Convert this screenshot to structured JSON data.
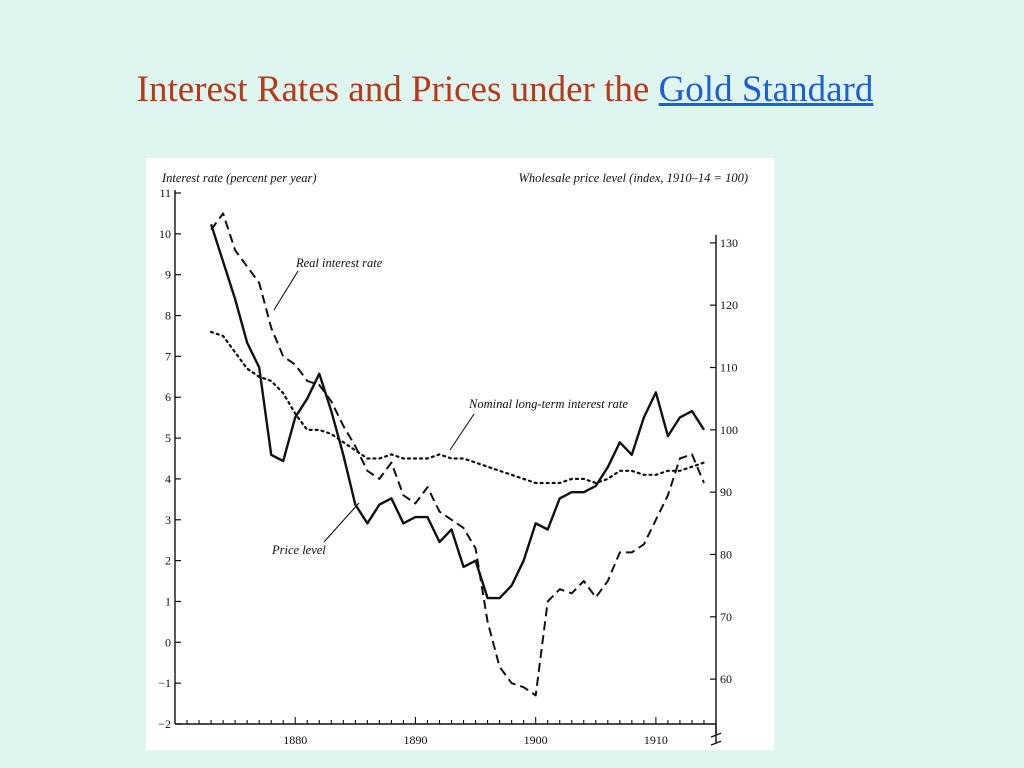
{
  "slide": {
    "title_prefix": "Interest Rates and Prices under the ",
    "title_link": "Gold Standard",
    "title_color": "#b5391a",
    "link_color": "#1f5fd6",
    "background": "#dff5ef"
  },
  "chart_data": {
    "type": "line",
    "left_axis_title": "Interest rate (percent per year)",
    "right_axis_title": "Wholesale price level (index, 1910–14 = 100)",
    "x_ticks": [
      1880,
      1890,
      1900,
      1910
    ],
    "xlim": [
      1870,
      1915
    ],
    "left_ylim": [
      -2,
      11
    ],
    "left_ticks": [
      -2,
      -1,
      0,
      1,
      2,
      3,
      4,
      5,
      6,
      7,
      8,
      9,
      10,
      11
    ],
    "right_ylim": [
      52.8,
      138
    ],
    "right_ticks": [
      60,
      70,
      80,
      90,
      100,
      110,
      120,
      130
    ],
    "right_axis_break": true,
    "grid": false,
    "series": [
      {
        "name": "Real interest rate",
        "axis": "left",
        "style": "dashed",
        "x": [
          1873,
          1874,
          1875,
          1876,
          1877,
          1878,
          1879,
          1880,
          1881,
          1882,
          1883,
          1884,
          1885,
          1886,
          1887,
          1888,
          1889,
          1890,
          1891,
          1892,
          1893,
          1894,
          1895,
          1896,
          1897,
          1898,
          1899,
          1900,
          1901,
          1902,
          1903,
          1904,
          1905,
          1906,
          1907,
          1908,
          1909,
          1910,
          1911,
          1912,
          1913,
          1914
        ],
        "values": [
          10.1,
          10.5,
          9.6,
          9.2,
          8.8,
          7.7,
          7.0,
          6.8,
          6.4,
          6.3,
          5.9,
          5.3,
          4.8,
          4.2,
          4.0,
          4.4,
          3.6,
          3.4,
          3.8,
          3.2,
          3.0,
          2.8,
          2.3,
          0.5,
          -0.6,
          -1.0,
          -1.1,
          -1.3,
          1.0,
          1.3,
          1.2,
          1.5,
          1.1,
          1.5,
          2.2,
          2.2,
          2.4,
          3.0,
          3.6,
          4.5,
          4.6,
          3.9
        ]
      },
      {
        "name": "Nominal long-term interest rate",
        "axis": "left",
        "style": "dotted",
        "x": [
          1873,
          1874,
          1875,
          1876,
          1877,
          1878,
          1879,
          1880,
          1881,
          1882,
          1883,
          1884,
          1885,
          1886,
          1887,
          1888,
          1889,
          1890,
          1891,
          1892,
          1893,
          1894,
          1895,
          1896,
          1897,
          1898,
          1899,
          1900,
          1901,
          1902,
          1903,
          1904,
          1905,
          1906,
          1907,
          1908,
          1909,
          1910,
          1911,
          1912,
          1913,
          1914
        ],
        "values": [
          7.6,
          7.5,
          7.1,
          6.7,
          6.5,
          6.4,
          6.1,
          5.6,
          5.2,
          5.2,
          5.1,
          4.9,
          4.7,
          4.5,
          4.5,
          4.6,
          4.5,
          4.5,
          4.5,
          4.6,
          4.5,
          4.5,
          4.4,
          4.3,
          4.2,
          4.1,
          4.0,
          3.9,
          3.9,
          3.9,
          4.0,
          4.0,
          3.9,
          4.0,
          4.2,
          4.2,
          4.1,
          4.1,
          4.2,
          4.2,
          4.3,
          4.4
        ]
      },
      {
        "name": "Price level",
        "axis": "right",
        "style": "solid",
        "x": [
          1873,
          1874,
          1875,
          1876,
          1877,
          1878,
          1879,
          1880,
          1881,
          1882,
          1883,
          1884,
          1885,
          1886,
          1887,
          1888,
          1889,
          1890,
          1891,
          1892,
          1893,
          1894,
          1895,
          1896,
          1897,
          1898,
          1899,
          1900,
          1901,
          1902,
          1903,
          1904,
          1905,
          1906,
          1907,
          1908,
          1909,
          1910,
          1911,
          1912,
          1913,
          1914
        ],
        "values": [
          133,
          127,
          121,
          114,
          110,
          96,
          95,
          102,
          105,
          109,
          103,
          96,
          88,
          85,
          88,
          89,
          85,
          86,
          86,
          82,
          84,
          78,
          79,
          73,
          73,
          75,
          79,
          85,
          84,
          89,
          90,
          90,
          91,
          94,
          98,
          96,
          102,
          106,
          99,
          102,
          103,
          100
        ]
      }
    ],
    "annotations": [
      {
        "text": "Real interest rate",
        "series": "Real interest rate"
      },
      {
        "text": "Nominal long-term interest rate",
        "series": "Nominal long-term interest rate"
      },
      {
        "text": "Price level",
        "series": "Price level"
      }
    ]
  }
}
